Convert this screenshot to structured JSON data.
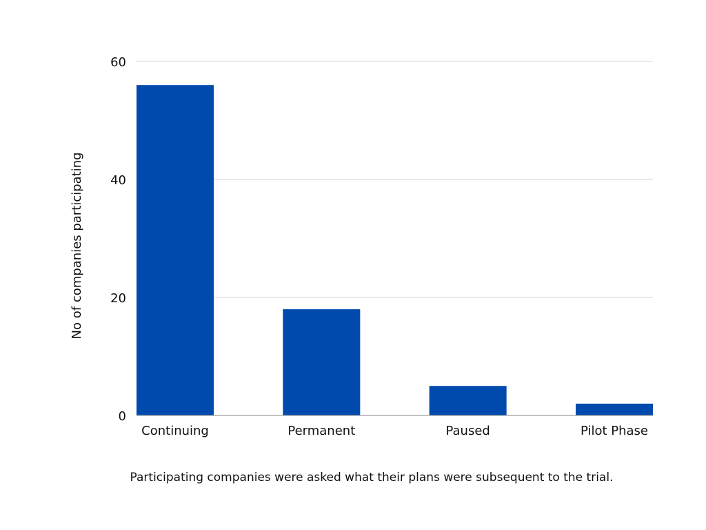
{
  "chart_data": {
    "type": "bar",
    "categories": [
      "Continuing",
      "Permanent",
      "Paused",
      "Pilot Phase"
    ],
    "values": [
      56,
      18,
      5,
      2
    ],
    "title": "",
    "xlabel": "",
    "ylabel": "No of companies participating",
    "ylim": [
      0,
      60
    ],
    "yticks": [
      0,
      20,
      40,
      60
    ],
    "grid": true,
    "legend": "none",
    "caption": "Participating companies were asked what their plans were subsequent to the trial.",
    "colors": {
      "bar": "#004AAD",
      "grid": "#D4D4D4",
      "axis": "#9E9E9E",
      "text": "#111111"
    }
  }
}
